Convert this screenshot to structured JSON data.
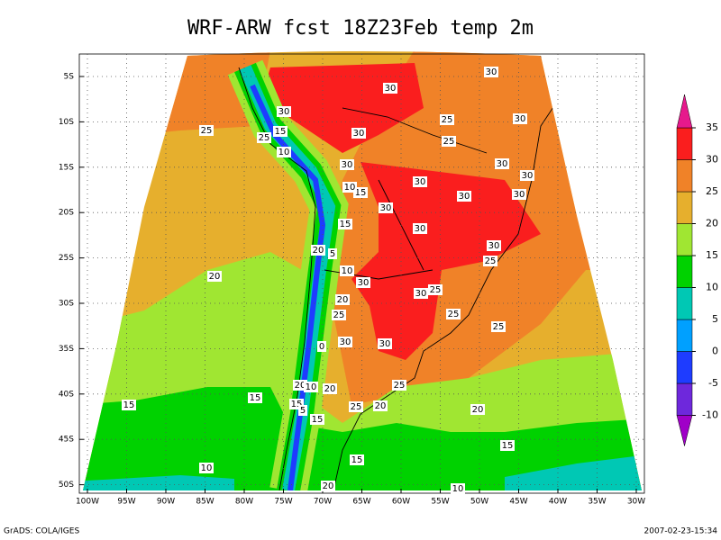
{
  "header": {
    "title": "WRF-ARW fcst 18Z23Feb temp 2m"
  },
  "lat_labels": [
    "5S",
    "10S",
    "15S",
    "20S",
    "25S",
    "30S",
    "35S",
    "40S",
    "45S",
    "50S"
  ],
  "lon_labels": [
    "100W",
    "95W",
    "90W",
    "85W",
    "80W",
    "75W",
    "70W",
    "65W",
    "60W",
    "55W",
    "50W",
    "45W",
    "40W",
    "35W",
    "30W"
  ],
  "colorbar": {
    "levels": [
      -10,
      -5,
      0,
      5,
      10,
      15,
      20,
      25,
      30,
      35
    ],
    "colors": [
      "#a000c8",
      "#6e28dc",
      "#1e3cff",
      "#00a0ff",
      "#00c8b4",
      "#00d200",
      "#a0e632",
      "#e6af2d",
      "#f08228",
      "#fa1e1e",
      "#e6198c"
    ]
  },
  "contour_labels": [
    "30",
    "30",
    "30",
    "30",
    "30",
    "30",
    "30",
    "30",
    "30",
    "30",
    "30",
    "30",
    "30",
    "30",
    "30",
    "30",
    "30",
    "30",
    "25",
    "25",
    "25",
    "25",
    "25",
    "25",
    "25",
    "25",
    "25",
    "25",
    "25",
    "20",
    "20",
    "20",
    "20",
    "20",
    "20",
    "20",
    "20",
    "15",
    "15",
    "15",
    "15",
    "15",
    "15",
    "15",
    "15",
    "15",
    "10",
    "10",
    "10",
    "10",
    "10",
    "10",
    "5",
    "5",
    "0"
  ],
  "footer": {
    "left": "GrADS: COLA/IGES",
    "right": "2007-02-23-15:34"
  }
}
